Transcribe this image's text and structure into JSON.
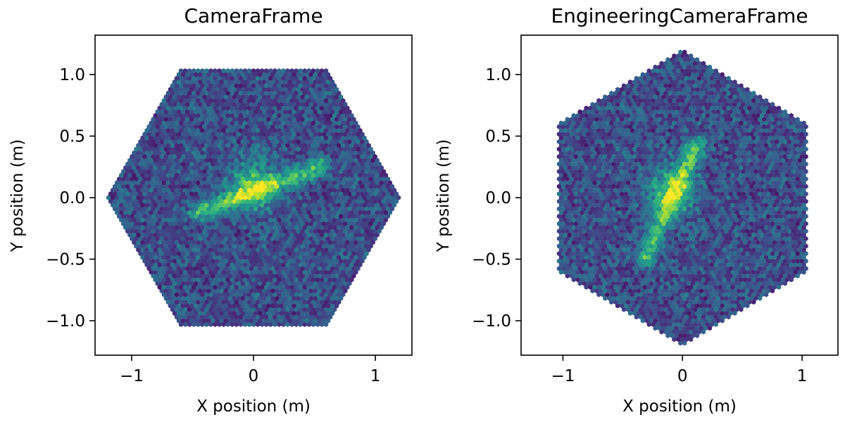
{
  "chart_data": [
    {
      "type": "heatmap",
      "subtype": "hexbin",
      "title": "CameraFrame",
      "xlabel": "X position (m)",
      "ylabel": "Y position (m)",
      "xlim": [
        -1.3,
        1.3
      ],
      "ylim": [
        -1.28,
        1.32
      ],
      "xticks": [
        -1,
        0,
        1
      ],
      "xtick_labels": [
        "−1",
        "0",
        "1"
      ],
      "yticks": [
        1.0,
        0.5,
        0.0,
        -0.5,
        -1.0
      ],
      "ytick_labels": [
        "1.0",
        "0.5",
        "0.0",
        "−0.5",
        "−1.0"
      ],
      "grid": false,
      "colormap": "viridis",
      "footprint": "hexagon, vertices at x = ±1.2 and flat top/bottom edges at y = ±1.03",
      "hotspot": {
        "shape": "elongated streak along a line tilted about +27°",
        "from": [
          -0.45,
          -0.12
        ],
        "to": [
          0.55,
          0.25
        ],
        "peak": [
          0.0,
          0.1
        ],
        "peak_count": 1.0,
        "background_count": 0.25
      }
    },
    {
      "type": "heatmap",
      "subtype": "hexbin",
      "title": "EngineeringCameraFrame",
      "xlabel": "X position (m)",
      "ylabel": "Y position (m)",
      "xlim": [
        -1.35,
        1.3
      ],
      "ylim": [
        -1.28,
        1.32
      ],
      "xticks": [
        -1,
        0,
        1
      ],
      "xtick_labels": [
        "−1",
        "0",
        "1"
      ],
      "yticks": [
        1.0,
        0.5,
        0.0,
        -0.5,
        -1.0
      ],
      "ytick_labels": [
        "1.0",
        "0.5",
        "0.0",
        "−0.5",
        "−1.0"
      ],
      "grid": false,
      "colormap": "viridis",
      "footprint": "hexagon, vertices at y = ±1.2 and flat left/right edges at x = ±1.03",
      "hotspot": {
        "shape": "elongated streak along a line tilted about +63°",
        "from": [
          -0.32,
          -0.5
        ],
        "to": [
          0.12,
          0.42
        ],
        "peak": [
          -0.1,
          0.05
        ],
        "peak_count": 1.0,
        "background_count": 0.25
      }
    }
  ]
}
